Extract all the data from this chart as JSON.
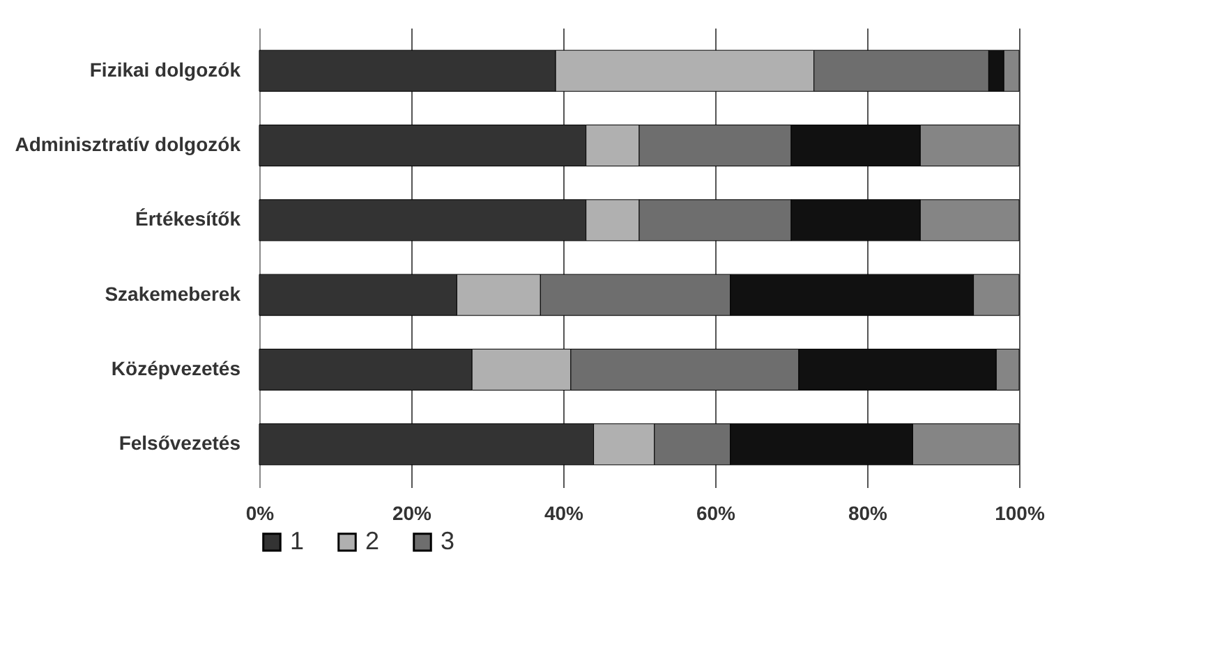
{
  "chart_data": {
    "type": "bar",
    "orientation": "horizontal",
    "stacked": true,
    "categories": [
      "Fizikai dolgozók",
      "Adminisztratív dolgozók",
      "Értékesítők",
      "Szakemeberek",
      "Középvezetés",
      "Felsővezetés"
    ],
    "series": [
      {
        "name": "1",
        "color": "#333333",
        "values": [
          39,
          43,
          43,
          26,
          28,
          44
        ]
      },
      {
        "name": "2",
        "color": "#b0b0b0",
        "values": [
          34,
          7,
          7,
          11,
          13,
          8
        ]
      },
      {
        "name": "3",
        "color": "#6e6e6e",
        "values": [
          23,
          20,
          20,
          25,
          30,
          10
        ]
      },
      {
        "color": "#111111",
        "values": [
          2,
          17,
          17,
          32,
          26,
          24
        ]
      },
      {
        "color": "#858585",
        "values": [
          2,
          13,
          13,
          6,
          3,
          14
        ]
      }
    ],
    "xlim": [
      0,
      100
    ],
    "xticks": [
      {
        "value": 0,
        "label": "0%"
      },
      {
        "value": 20,
        "label": "20%"
      },
      {
        "value": 40,
        "label": "40%"
      },
      {
        "value": 60,
        "label": "60%"
      },
      {
        "value": 80,
        "label": "80%"
      },
      {
        "value": 100,
        "label": "100%"
      }
    ],
    "grid": "x",
    "legend": "bottom"
  }
}
